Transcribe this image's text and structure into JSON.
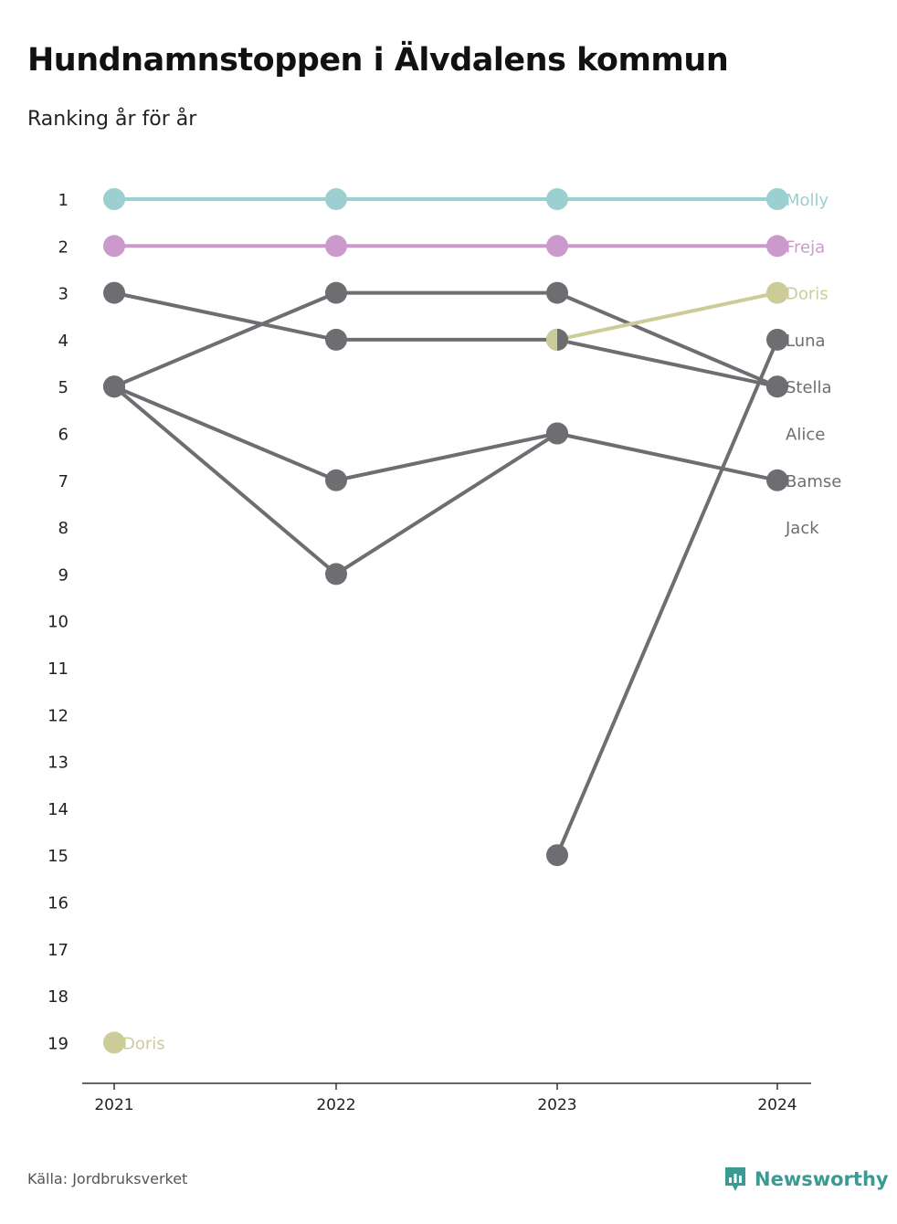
{
  "title": "Hundnamnstoppen i Älvdalens kommun",
  "subtitle": "Ranking år för år",
  "source": "Källa: Jordbruksverket",
  "brand": "Newsworthy",
  "brand_icon": "newsworthy-logo-icon",
  "chart_data": {
    "type": "line",
    "x": [
      "2021",
      "2022",
      "2023",
      "2024"
    ],
    "y_ticks": [
      "1",
      "2",
      "3",
      "4",
      "5",
      "6",
      "7",
      "8",
      "9",
      "10",
      "11",
      "12",
      "13",
      "14",
      "15",
      "16",
      "17",
      "18",
      "19"
    ],
    "ylim": [
      1,
      19
    ],
    "y_inverted": true,
    "grid": false,
    "colors": {
      "Molly": "#9ccfcf",
      "Freja": "#cc99cc",
      "Doris": "#cccc99",
      "other": "#6e6d72"
    },
    "series": [
      {
        "name": "Molly",
        "values": [
          1,
          1,
          1,
          1
        ],
        "color": "#9ccfcf",
        "highlight": true
      },
      {
        "name": "Freja",
        "values": [
          2,
          2,
          2,
          2
        ],
        "color": "#cc99cc",
        "highlight": true
      },
      {
        "name": "Doris",
        "values": [
          19,
          null,
          4,
          3
        ],
        "color": "#cccc99",
        "highlight": true
      },
      {
        "name": "Luna",
        "values": [
          null,
          null,
          15,
          4
        ],
        "color": "#6e6d72"
      },
      {
        "name": "Stella",
        "values": [
          3,
          4,
          4,
          5
        ],
        "color": "#6e6d72"
      },
      {
        "name": "Alice",
        "values": [
          5,
          3,
          3,
          5
        ],
        "color": "#6e6d72"
      },
      {
        "name": "Bamse",
        "values": [
          5,
          7,
          6,
          7
        ],
        "color": "#6e6d72"
      },
      {
        "name": "Jack",
        "values": [
          5,
          9,
          6,
          null
        ],
        "color": "#6e6d72"
      }
    ],
    "end_labels": [
      {
        "name": "Molly",
        "rank": 1,
        "color": "#9ccfcf"
      },
      {
        "name": "Freja",
        "rank": 2,
        "color": "#cc99cc"
      },
      {
        "name": "Doris",
        "rank": 3,
        "color": "#cccc99"
      },
      {
        "name": "Luna",
        "rank": 4,
        "color": "#6e6d72"
      },
      {
        "name": "Stella",
        "rank": 5,
        "color": "#6e6d72"
      },
      {
        "name": "Alice",
        "rank": 6,
        "color": "#6e6d72"
      },
      {
        "name": "Bamse",
        "rank": 7,
        "color": "#6e6d72"
      },
      {
        "name": "Jack",
        "rank": 8,
        "color": "#6e6d72"
      }
    ],
    "start_labels": [
      {
        "name": "Doris",
        "year_index": 0,
        "rank": 19,
        "color": "#cccc99"
      }
    ]
  }
}
